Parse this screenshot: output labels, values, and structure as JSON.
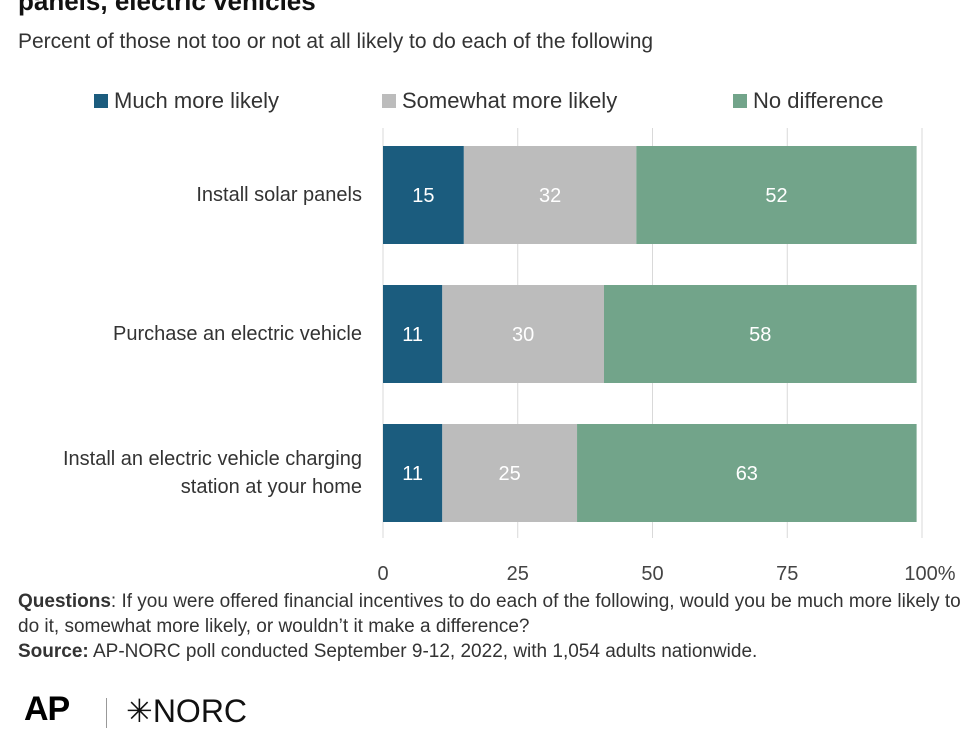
{
  "header": {
    "title": "panels, electric vehicles",
    "subtitle": "Percent of those not too or not at all likely to do each of the following"
  },
  "colors": {
    "much_more": "#1b5c7e",
    "somewhat_more": "#bcbcbc",
    "no_difference": "#72a48a",
    "grid": "#d9d9d9"
  },
  "chart_data": {
    "type": "bar",
    "orientation": "horizontal",
    "stacked": true,
    "categories": [
      "Install solar panels",
      "Purchase an electric vehicle",
      "Install an electric vehicle charging station at your home"
    ],
    "series": [
      {
        "name": "Much more likely",
        "values": [
          15,
          11,
          11
        ]
      },
      {
        "name": "Somewhat more likely",
        "values": [
          32,
          30,
          25
        ]
      },
      {
        "name": "No difference",
        "values": [
          52,
          58,
          63
        ]
      }
    ],
    "xlim": [
      0,
      100
    ],
    "x_ticks": [
      "0",
      "25",
      "50",
      "75",
      "100%"
    ],
    "legend_position": "top",
    "grid": true
  },
  "notes": {
    "questions_label": "Questions",
    "questions_text": ": If you were offered financial incentives to do each of the following, would you be much more likely to do it, somewhat more likely, or wouldn’t it make a difference?",
    "source_label": "Source:",
    "source_text": " AP-NORC poll conducted September 9-12, 2022, with 1,054 adults nationwide."
  },
  "logos": {
    "ap": "AP",
    "norc": "✳NORC"
  }
}
